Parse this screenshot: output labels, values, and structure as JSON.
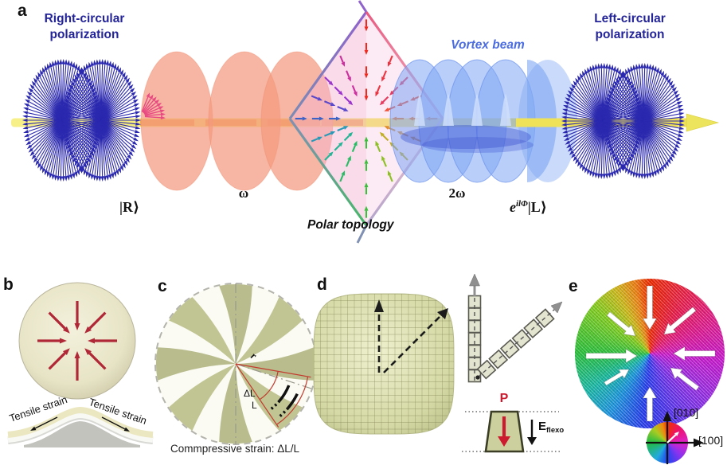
{
  "figure": {
    "panel_a": {
      "label": "a",
      "right_polarization": "Right-circular polarization",
      "left_polarization": "Left-circular polarization",
      "vortex_beam": "Vortex beam",
      "ket_in": "|R⟩",
      "omega": "ω",
      "polar_topology": "Polar topology",
      "two_omega": "2ω",
      "exp_base": "e",
      "exp_sup": "ilΦ",
      "ket_out": "|L⟩"
    },
    "panel_b": {
      "label": "b",
      "tensile_left": "Tensile strain",
      "tensile_right": "Tensile strain"
    },
    "panel_c": {
      "label": "c",
      "radius": "r",
      "delta_l": "ΔL",
      "l": "L",
      "caption": "Commpressive strain: ΔL/L"
    },
    "panel_d": {
      "label": "d",
      "polarization": "P",
      "field_base": "E",
      "field_sub": "flexo"
    },
    "panel_e": {
      "label": "e",
      "axis_y": "[010]",
      "axis_x": "[100]"
    }
  },
  "colors": {
    "navy_text": "#24249a",
    "vortex_text": "#4a6ce0",
    "fan_blue": "#2a28ae",
    "fan_red": "#e84a82",
    "beam_yellow": "#f0e258",
    "beam_orange": "#f0a24a",
    "disk_salmon": "#f49a80",
    "helix_blue": "#7fa6f4",
    "helix_dark": "#3a50d0",
    "inward_arrow_red": "#b02838",
    "blade_olive": "#b9bd8e",
    "mesh_khaki": "#d5d9a5",
    "p_red": "#cc1b2e",
    "gray_arrow": "#909090",
    "annotation_red": "#c23b2e",
    "black": "#1a1a1a"
  }
}
